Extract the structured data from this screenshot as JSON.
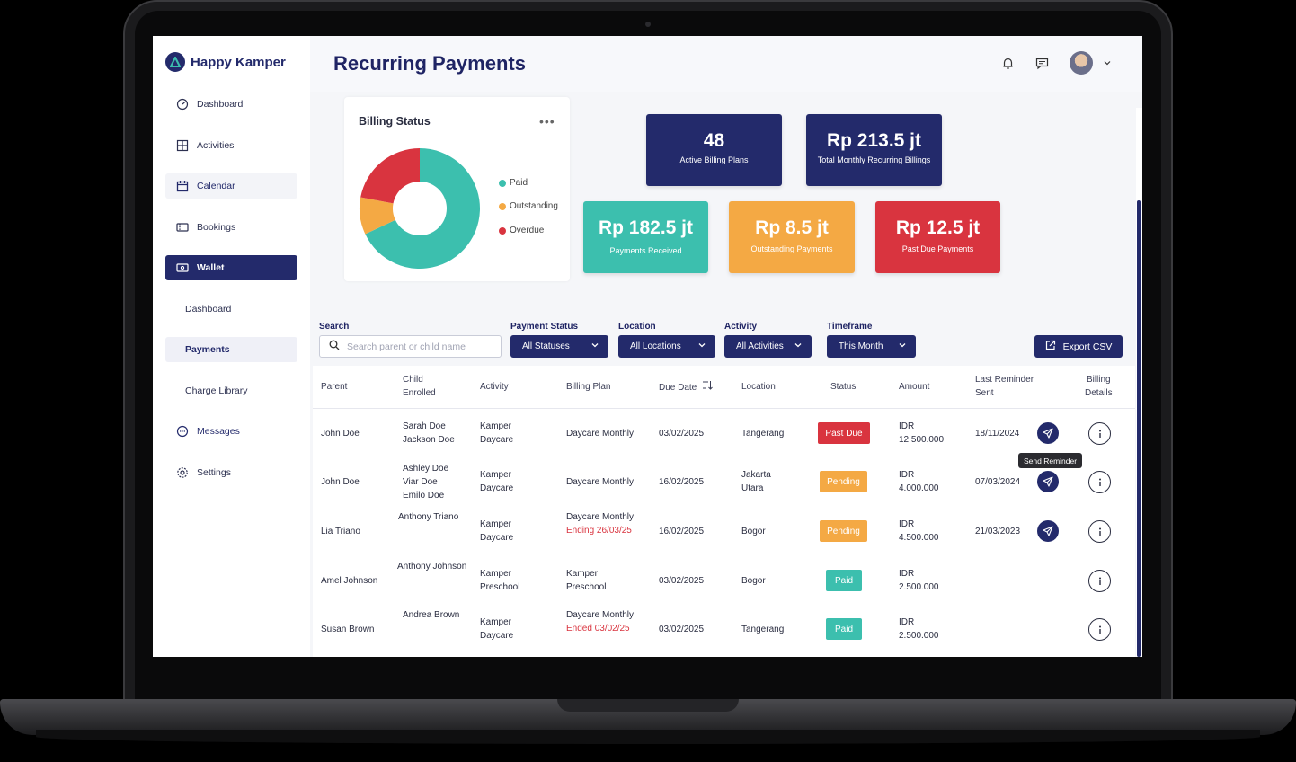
{
  "app": {
    "name": "Happy Kamper"
  },
  "page": {
    "title": "Recurring Payments"
  },
  "sidebar": {
    "items": [
      {
        "label": "Dashboard"
      },
      {
        "label": "Activities"
      },
      {
        "label": "Calendar"
      },
      {
        "label": "Bookings"
      },
      {
        "label": "Wallet"
      },
      {
        "label": "Dashboard"
      },
      {
        "label": "Payments"
      },
      {
        "label": "Charge Library"
      },
      {
        "label": "Messages"
      },
      {
        "label": "Settings"
      }
    ]
  },
  "billing": {
    "title": "Billing Status",
    "legend": [
      {
        "label": "Paid",
        "color": "#3cbfae"
      },
      {
        "label": "Outstanding",
        "color": "#f4a944"
      },
      {
        "label": "Overdue",
        "color": "#d9343f"
      }
    ]
  },
  "chart_data": {
    "type": "pie",
    "title": "Billing Status",
    "categories": [
      "Paid",
      "Outstanding",
      "Overdue"
    ],
    "values": [
      68,
      10,
      22
    ],
    "colors": [
      "#3cbfae",
      "#f4a944",
      "#d9343f"
    ],
    "legend": "right"
  },
  "stats": [
    {
      "value": "48",
      "label": "Active Billing Plans",
      "color": "#232a6b"
    },
    {
      "value": "Rp 213.5 jt",
      "label": "Total Monthly Recurring Billings",
      "color": "#232a6b"
    },
    {
      "value": "Rp 182.5 jt",
      "label": "Payments Received",
      "color": "#3cbfae"
    },
    {
      "value": "Rp 8.5 jt",
      "label": "Outstanding Payments",
      "color": "#f4a944"
    },
    {
      "value": "Rp 12.5 jt",
      "label": "Past Due Payments",
      "color": "#d9343f"
    }
  ],
  "filters": {
    "search": {
      "label": "Search",
      "placeholder": "Search parent or child name"
    },
    "payment_status": {
      "label": "Payment Status",
      "value": "All Statuses"
    },
    "location": {
      "label": "Location",
      "value": "All Locations"
    },
    "activity": {
      "label": "Activity",
      "value": "All Activities"
    },
    "timeframe": {
      "label": "Timeframe",
      "value": "This Month"
    },
    "export_label": "Export CSV"
  },
  "table": {
    "headers": {
      "parent": "Parent",
      "child": "Child\nEnrolled",
      "activity": "Activity",
      "billing_plan": "Billing Plan",
      "due_date": "Due Date",
      "location": "Location",
      "status": "Status",
      "amount": "Amount",
      "last_reminder": "Last Reminder\nSent",
      "billing_details": "Billing\nDetails"
    },
    "rows": [
      {
        "parent": "John Doe",
        "child": "Sarah Doe\nJackson Doe",
        "activity": "Kamper\nDaycare",
        "plan": "Daycare Monthly",
        "plan_note": "",
        "due": "03/02/2025",
        "location": "Tangerang",
        "status": "Past Due",
        "amount": "IDR\n12.500.000",
        "reminder": "18/11/2024"
      },
      {
        "parent": "John Doe",
        "child": "Ashley Doe\nViar Doe\nEmilo Doe",
        "activity": "Kamper\nDaycare",
        "plan": "Daycare Monthly",
        "plan_note": "",
        "due": "16/02/2025",
        "location": "Jakarta\nUtara",
        "status": "Pending",
        "amount": "IDR\n4.000.000",
        "reminder": "07/03/2024"
      },
      {
        "parent": "Lia Triano",
        "child": "Anthony Triano",
        "activity": "Kamper\nDaycare",
        "plan": "Daycare Monthly",
        "plan_note": "Ending 26/03/25",
        "due": "16/02/2025",
        "location": "Bogor",
        "status": "Pending",
        "amount": "IDR\n4.500.000",
        "reminder": "21/03/2023"
      },
      {
        "parent": "Amel Johnson",
        "child": "Anthony Johnson",
        "activity": "Kamper\nPreschool",
        "plan": "Kamper\nPreschool",
        "plan_note": "",
        "due": "03/02/2025",
        "location": "Bogor",
        "status": "Paid",
        "amount": "IDR\n2.500.000",
        "reminder": ""
      },
      {
        "parent": "Susan Brown",
        "child": "Andrea Brown",
        "activity": "Kamper\nDaycare",
        "plan": "Daycare Monthly",
        "plan_note": "Ended 03/02/25",
        "due": "03/02/2025",
        "location": "Tangerang",
        "status": "Paid",
        "amount": "IDR\n2.500.000",
        "reminder": ""
      }
    ]
  },
  "tooltip": "Send Reminder"
}
